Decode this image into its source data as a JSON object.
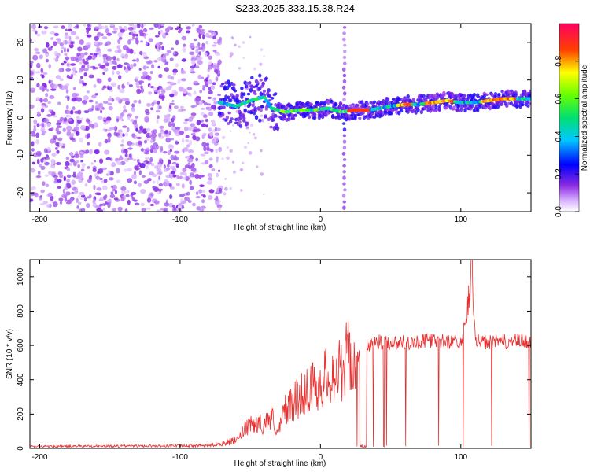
{
  "title": "S233.2025.333.15.38.R24",
  "chart_data": [
    {
      "type": "heatmap",
      "name": "spectrogram",
      "xlabel": "Height of straight line (km)",
      "ylabel": "Frequency (Hz)",
      "xlim": [
        -207,
        150
      ],
      "ylim": [
        -25,
        25
      ],
      "xticks": [
        -200,
        -100,
        0,
        100
      ],
      "yticks": [
        -20,
        -10,
        0,
        10,
        20
      ],
      "noise_region_x": [
        -207,
        -71
      ],
      "vertical_streak_x": 17,
      "ridge": [
        {
          "x": -72,
          "f": 4.0
        },
        {
          "x": -60,
          "f": 3.0
        },
        {
          "x": -50,
          "f": 4.5
        },
        {
          "x": -40,
          "f": 5.5
        },
        {
          "x": -35,
          "f": 2.5
        },
        {
          "x": -25,
          "f": 1.5
        },
        {
          "x": -15,
          "f": 2.0
        },
        {
          "x": -5,
          "f": 2.0
        },
        {
          "x": 5,
          "f": 2.5
        },
        {
          "x": 15,
          "f": 1.5
        },
        {
          "x": 25,
          "f": 2.0
        },
        {
          "x": 35,
          "f": 2.0
        },
        {
          "x": 50,
          "f": 3.0
        },
        {
          "x": 60,
          "f": 3.5
        },
        {
          "x": 70,
          "f": 3.5
        },
        {
          "x": 80,
          "f": 4.0
        },
        {
          "x": 90,
          "f": 4.5
        },
        {
          "x": 100,
          "f": 4.0
        },
        {
          "x": 110,
          "f": 4.0
        },
        {
          "x": 120,
          "f": 4.5
        },
        {
          "x": 130,
          "f": 5.0
        },
        {
          "x": 140,
          "f": 5.0
        },
        {
          "x": 150,
          "f": 5.0
        }
      ],
      "colorbar": {
        "label": "Normalized spectral amplitude",
        "ticks": [
          "0.0",
          "0.2",
          "0.4",
          "0.6",
          "0.8"
        ],
        "range": [
          0,
          1
        ]
      }
    },
    {
      "type": "line",
      "name": "snr",
      "xlabel": "Height of straight line (km)",
      "ylabel": "SNR (10 * v/v)",
      "xlim": [
        -207,
        150
      ],
      "ylim": [
        0,
        1100
      ],
      "xticks": [
        -200,
        -100,
        0,
        100
      ],
      "yticks": [
        0,
        200,
        400,
        600,
        800,
        1000
      ],
      "color": "#e83030",
      "series": [
        {
          "name": "SNR",
          "x": [
            -207,
            -150,
            -120,
            -80,
            -60,
            -55,
            -50,
            -45,
            -40,
            -35,
            -30,
            -25,
            -20,
            -15,
            -10,
            -5,
            0,
            5,
            10,
            15,
            20,
            25,
            30,
            40,
            50,
            60,
            70,
            80,
            90,
            100,
            105,
            108,
            110,
            120,
            130,
            140,
            150
          ],
          "y": [
            10,
            12,
            13,
            15,
            40,
            110,
            140,
            150,
            150,
            200,
            90,
            250,
            270,
            320,
            360,
            380,
            400,
            450,
            460,
            480,
            580,
            500,
            600,
            620,
            615,
            620,
            620,
            630,
            620,
            625,
            780,
            1100,
            620,
            615,
            620,
            625,
            620
          ]
        }
      ]
    }
  ]
}
